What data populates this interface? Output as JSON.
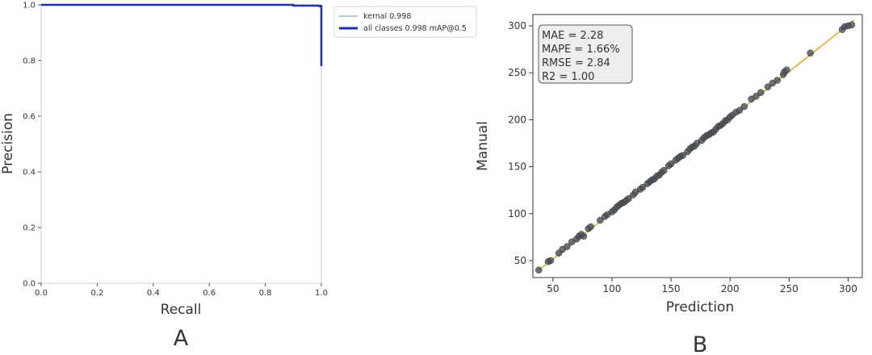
{
  "chart_data": [
    {
      "type": "line",
      "panel_label": "A",
      "xlabel": "Recall",
      "ylabel": "Precision",
      "xlim": [
        0,
        1
      ],
      "ylim": [
        0,
        1
      ],
      "xticks": [
        "0.0",
        "0.2",
        "0.4",
        "0.6",
        "0.8",
        "1.0"
      ],
      "yticks": [
        "0.0",
        "0.2",
        "0.4",
        "0.6",
        "0.8",
        "1.0"
      ],
      "grid": false,
      "legend_position": "outside-upper-right",
      "series": [
        {
          "name": "kernal 0.998",
          "color": "#5b8fb0",
          "x": [
            0.0,
            0.75,
            0.9,
            0.9,
            0.995,
            0.995,
            1.0,
            1.0
          ],
          "y": [
            1.0,
            1.0,
            1.0,
            0.997,
            0.997,
            0.995,
            0.995,
            0.78
          ]
        },
        {
          "name": "all classes 0.998 mAP@0.5",
          "color": "#1f2fa8",
          "x": [
            0.0,
            0.75,
            0.9,
            0.9,
            0.995,
            0.995,
            1.0,
            1.0
          ],
          "y": [
            1.0,
            1.0,
            1.0,
            0.997,
            0.997,
            0.995,
            0.995,
            0.78
          ]
        }
      ]
    },
    {
      "type": "scatter",
      "panel_label": "B",
      "xlabel": "Prediction",
      "ylabel": "Manual",
      "xlim": [
        33,
        312
      ],
      "ylim": [
        32,
        312
      ],
      "xticks": [
        "50",
        "100",
        "150",
        "200",
        "250",
        "300"
      ],
      "yticks": [
        "50",
        "100",
        "150",
        "200",
        "250",
        "300"
      ],
      "grid": false,
      "fit_line": {
        "x": [
          38,
          305
        ],
        "y": [
          40,
          306
        ],
        "color": "#e8a833"
      },
      "stats": [
        "MAE = 2.28",
        "MAPE = 1.66%",
        "RMSE = 2.84",
        "R2 = 1.00"
      ],
      "point_color": "#4a4f56",
      "points": [
        [
          38,
          40
        ],
        [
          46,
          49
        ],
        [
          48,
          50
        ],
        [
          55,
          58
        ],
        [
          58,
          62
        ],
        [
          62,
          65
        ],
        [
          66,
          70
        ],
        [
          70,
          73
        ],
        [
          72,
          76
        ],
        [
          74,
          78
        ],
        [
          76,
          76
        ],
        [
          80,
          84
        ],
        [
          82,
          86
        ],
        [
          90,
          93
        ],
        [
          94,
          97
        ],
        [
          96,
          99
        ],
        [
          100,
          102
        ],
        [
          102,
          104
        ],
        [
          104,
          107
        ],
        [
          106,
          109
        ],
        [
          108,
          111
        ],
        [
          110,
          112
        ],
        [
          112,
          114
        ],
        [
          114,
          116
        ],
        [
          118,
          120
        ],
        [
          120,
          123
        ],
        [
          124,
          126
        ],
        [
          126,
          128
        ],
        [
          130,
          132
        ],
        [
          132,
          134
        ],
        [
          134,
          136
        ],
        [
          136,
          137
        ],
        [
          138,
          140
        ],
        [
          140,
          141
        ],
        [
          142,
          144
        ],
        [
          144,
          146
        ],
        [
          148,
          151
        ],
        [
          150,
          153
        ],
        [
          154,
          157
        ],
        [
          156,
          159
        ],
        [
          158,
          161
        ],
        [
          160,
          162
        ],
        [
          164,
          166
        ],
        [
          166,
          169
        ],
        [
          168,
          171
        ],
        [
          170,
          172
        ],
        [
          172,
          175
        ],
        [
          176,
          178
        ],
        [
          178,
          181
        ],
        [
          180,
          183
        ],
        [
          182,
          184
        ],
        [
          184,
          186
        ],
        [
          186,
          187
        ],
        [
          188,
          190
        ],
        [
          190,
          193
        ],
        [
          192,
          194
        ],
        [
          194,
          196
        ],
        [
          196,
          199
        ],
        [
          198,
          200
        ],
        [
          200,
          203
        ],
        [
          202,
          205
        ],
        [
          205,
          208
        ],
        [
          208,
          210
        ],
        [
          212,
          214
        ],
        [
          218,
          222
        ],
        [
          222,
          225
        ],
        [
          226,
          229
        ],
        [
          232,
          235
        ],
        [
          236,
          239
        ],
        [
          240,
          242
        ],
        [
          245,
          248
        ],
        [
          246,
          251
        ],
        [
          248,
          253
        ],
        [
          268,
          271
        ],
        [
          295,
          296
        ],
        [
          297,
          299
        ],
        [
          300,
          300
        ],
        [
          303,
          301
        ]
      ]
    }
  ]
}
